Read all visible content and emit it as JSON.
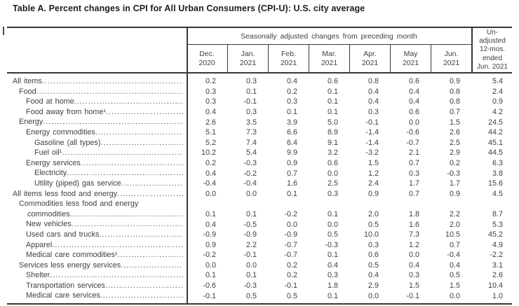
{
  "title": "Table A. Percent changes in CPI for All Urban Consumers (CPI-U): U.S. city average",
  "colors": {
    "background": "#ffffff",
    "text": "#404040",
    "title_text": "#1d1d1d",
    "rule_lines": "#383838"
  },
  "table": {
    "spanner": "Seasonally adjusted changes from preceding month",
    "unadjusted_lines": [
      "Un-",
      "adjusted",
      "12-mos.",
      "ended",
      "Jun. 2021"
    ],
    "columns": [
      {
        "abbr": "Dec.",
        "year": "2020"
      },
      {
        "abbr": "Jan.",
        "year": "2021"
      },
      {
        "abbr": "Feb.",
        "year": "2021"
      },
      {
        "abbr": "Mar.",
        "year": "2021"
      },
      {
        "abbr": "Apr.",
        "year": "2021"
      },
      {
        "abbr": "May",
        "year": "2021"
      },
      {
        "abbr": "Jun.",
        "year": "2021"
      }
    ],
    "rows": [
      {
        "lines": [
          "All items"
        ],
        "indent": 0,
        "values": [
          "0.2",
          "0.3",
          "0.4",
          "0.6",
          "0.8",
          "0.6",
          "0.9",
          "5.4"
        ]
      },
      {
        "lines": [
          "Food"
        ],
        "indent": 1,
        "values": [
          "0.3",
          "0.1",
          "0.2",
          "0.1",
          "0.4",
          "0.4",
          "0.8",
          "2.4"
        ]
      },
      {
        "lines": [
          "Food at home"
        ],
        "indent": 2,
        "values": [
          "0.3",
          "-0.1",
          "0.3",
          "0.1",
          "0.4",
          "0.4",
          "0.8",
          "0.9"
        ]
      },
      {
        "lines": [
          "Food away from home¹"
        ],
        "indent": 2,
        "values": [
          "0.4",
          "0.3",
          "0.1",
          "0.1",
          "0.3",
          "0.6",
          "0.7",
          "4.2"
        ]
      },
      {
        "lines": [
          "Energy"
        ],
        "indent": 1,
        "values": [
          "2.6",
          "3.5",
          "3.9",
          "5.0",
          "-0.1",
          "0.0",
          "1.5",
          "24.5"
        ]
      },
      {
        "lines": [
          "Energy commodities"
        ],
        "indent": 2,
        "values": [
          "5.1",
          "7.3",
          "6.6",
          "8.9",
          "-1.4",
          "-0.6",
          "2.6",
          "44.2"
        ]
      },
      {
        "lines": [
          "Gasoline (all types)"
        ],
        "indent": 3,
        "values": [
          "5.2",
          "7.4",
          "6.4",
          "9.1",
          "-1.4",
          "-0.7",
          "2.5",
          "45.1"
        ]
      },
      {
        "lines": [
          "Fuel oil¹"
        ],
        "indent": 3,
        "values": [
          "10.2",
          "5.4",
          "9.9",
          "3.2",
          "-3.2",
          "2.1",
          "2.9",
          "44.5"
        ]
      },
      {
        "lines": [
          "Energy services"
        ],
        "indent": 2,
        "values": [
          "0.2",
          "-0.3",
          "0.9",
          "0.6",
          "1.5",
          "0.7",
          "0.2",
          "6.3"
        ]
      },
      {
        "lines": [
          "Electricity"
        ],
        "indent": 3,
        "values": [
          "0.4",
          "-0.2",
          "0.7",
          "0.0",
          "1.2",
          "0.3",
          "-0.3",
          "3.8"
        ]
      },
      {
        "lines": [
          "Utility (piped) gas service"
        ],
        "indent": 3,
        "values": [
          "-0.4",
          "-0.4",
          "1.6",
          "2.5",
          "2.4",
          "1.7",
          "1.7",
          "15.6"
        ]
      },
      {
        "lines": [
          "All items less food and energy"
        ],
        "indent": 0,
        "values": [
          "0.0",
          "0.0",
          "0.1",
          "0.3",
          "0.9",
          "0.7",
          "0.9",
          "4.5"
        ]
      },
      {
        "lines": [
          "Commodities less food and energy",
          "commodities"
        ],
        "indent": 1,
        "values": [
          "0.1",
          "0.1",
          "-0.2",
          "0.1",
          "2.0",
          "1.8",
          "2.2",
          "8.7"
        ]
      },
      {
        "lines": [
          "New vehicles"
        ],
        "indent": 2,
        "values": [
          "0.4",
          "-0.5",
          "0.0",
          "0.0",
          "0.5",
          "1.6",
          "2.0",
          "5.3"
        ]
      },
      {
        "lines": [
          "Used cars and trucks"
        ],
        "indent": 2,
        "values": [
          "-0.9",
          "-0.9",
          "-0.9",
          "0.5",
          "10.0",
          "7.3",
          "10.5",
          "45.2"
        ]
      },
      {
        "lines": [
          "Apparel"
        ],
        "indent": 2,
        "values": [
          "0.9",
          "2.2",
          "-0.7",
          "-0.3",
          "0.3",
          "1.2",
          "0.7",
          "4.9"
        ]
      },
      {
        "lines": [
          "Medical care commodities¹"
        ],
        "indent": 2,
        "values": [
          "-0.2",
          "-0.1",
          "-0.7",
          "0.1",
          "0.6",
          "0.0",
          "-0.4",
          "-2.2"
        ]
      },
      {
        "lines": [
          "Services less energy services"
        ],
        "indent": 1,
        "values": [
          "0.0",
          "0.0",
          "0.2",
          "0.4",
          "0.5",
          "0.4",
          "0.4",
          "3.1"
        ]
      },
      {
        "lines": [
          "Shelter"
        ],
        "indent": 2,
        "values": [
          "0.1",
          "0.1",
          "0.2",
          "0.3",
          "0.4",
          "0.3",
          "0.5",
          "2.6"
        ]
      },
      {
        "lines": [
          "Transportation services"
        ],
        "indent": 2,
        "values": [
          "-0.6",
          "-0.3",
          "-0.1",
          "1.8",
          "2.9",
          "1.5",
          "1.5",
          "10.4"
        ]
      },
      {
        "lines": [
          "Medical care services"
        ],
        "indent": 2,
        "values": [
          "-0.1",
          "0.5",
          "0.5",
          "0.1",
          "0.0",
          "-0.1",
          "0.0",
          "1.0"
        ]
      }
    ]
  }
}
